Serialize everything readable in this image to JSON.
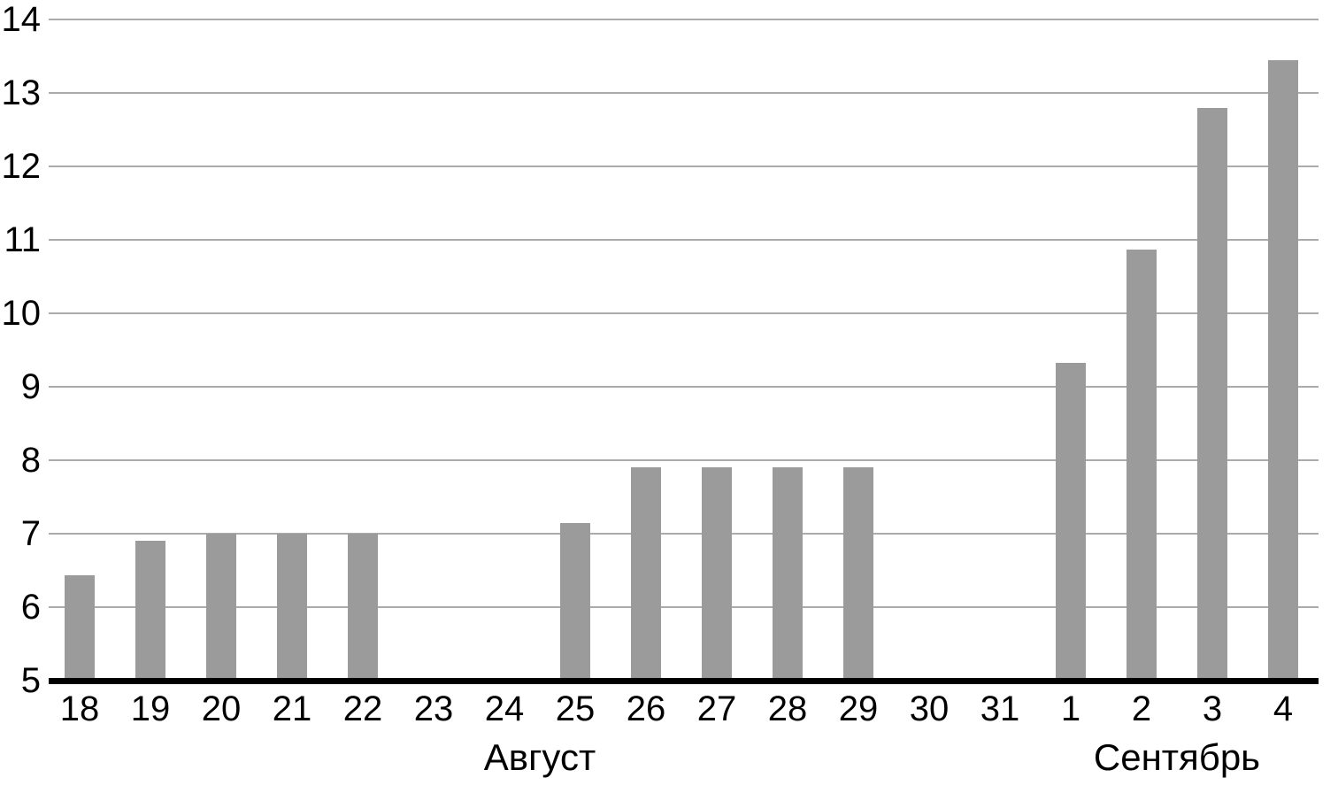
{
  "chart_data": {
    "type": "bar",
    "title": "",
    "xlabel": "",
    "ylabel": "",
    "categories": [
      "18",
      "19",
      "20",
      "21",
      "22",
      "23",
      "24",
      "25",
      "26",
      "27",
      "28",
      "29",
      "30",
      "31",
      "1",
      "2",
      "3",
      "4"
    ],
    "values": [
      6.43,
      6.9,
      7,
      7,
      7,
      null,
      null,
      7.14,
      7.9,
      7.9,
      7.9,
      7.9,
      null,
      null,
      9.33,
      10.87,
      12.8,
      13.45
    ],
    "month_groups": [
      {
        "label": "Август",
        "start_index": 0,
        "end_index": 13
      },
      {
        "label": "Сентябрь",
        "start_index": 14,
        "end_index": 17
      }
    ],
    "ylim": [
      5,
      14
    ],
    "yticks": [
      5,
      6,
      7,
      8,
      9,
      10,
      11,
      12,
      13,
      14
    ],
    "grid": "horizontal",
    "legend": "none",
    "colors": {
      "bar": "#9b9b9b",
      "gridline": "#ababab",
      "axis": "#000000",
      "text": "#000000",
      "background": "#ffffff"
    }
  }
}
